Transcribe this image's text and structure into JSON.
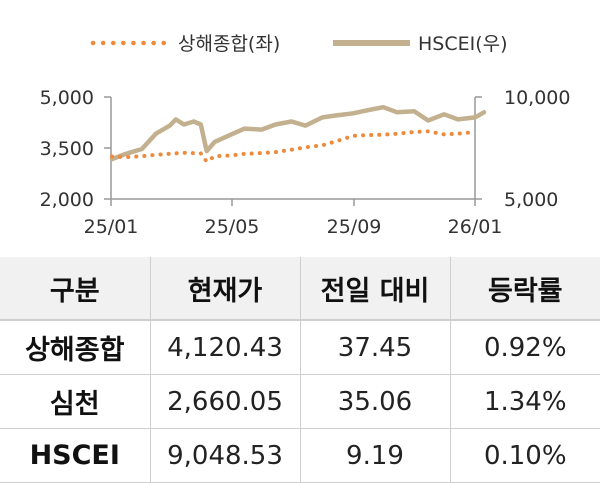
{
  "chart_data": {
    "type": "line",
    "legend": {
      "position": "top",
      "entries": [
        "상해종합(좌)",
        "HSCEI(우)"
      ]
    },
    "x_ticks": [
      "25/01",
      "25/05",
      "25/09",
      "26/01"
    ],
    "y_left": {
      "ticks": [
        "5,000",
        "3,500",
        "2,000"
      ],
      "range": [
        2000,
        5000
      ]
    },
    "y_right": {
      "ticks": [
        "10,000",
        "5,000"
      ],
      "range": [
        5000,
        10000
      ]
    },
    "grid": false,
    "series": [
      {
        "name": "상해종합(좌)",
        "axis": "left",
        "style": "dotted",
        "color": "#ee8a3c",
        "x": [
          "2025-01-02",
          "2025-01-15",
          "2025-02-01",
          "2025-02-15",
          "2025-03-01",
          "2025-03-15",
          "2025-04-01",
          "2025-04-07",
          "2025-04-15",
          "2025-05-01",
          "2025-05-15",
          "2025-06-01",
          "2025-06-15",
          "2025-07-01",
          "2025-07-15",
          "2025-08-01",
          "2025-08-15",
          "2025-09-01",
          "2025-09-15",
          "2025-10-01",
          "2025-10-15",
          "2025-11-01",
          "2025-11-15",
          "2025-12-01",
          "2025-12-15",
          "2026-01-01"
        ],
        "y": [
          3250,
          3230,
          3260,
          3300,
          3330,
          3360,
          3340,
          3100,
          3260,
          3280,
          3330,
          3350,
          3380,
          3450,
          3520,
          3580,
          3700,
          3860,
          3880,
          3890,
          3920,
          3970,
          3990,
          3900,
          3920,
          3970
        ]
      },
      {
        "name": "HSCEI(우)",
        "axis": "right",
        "style": "solid",
        "color": "#c3b08f",
        "x": [
          "2025-01-02",
          "2025-01-15",
          "2025-02-01",
          "2025-02-15",
          "2025-03-01",
          "2025-03-07",
          "2025-03-15",
          "2025-03-25",
          "2025-04-01",
          "2025-04-07",
          "2025-04-15",
          "2025-05-01",
          "2025-05-15",
          "2025-06-01",
          "2025-06-15",
          "2025-07-01",
          "2025-07-15",
          "2025-08-01",
          "2025-08-15",
          "2025-09-01",
          "2025-09-15",
          "2025-10-01",
          "2025-10-15",
          "2025-11-01",
          "2025-11-15",
          "2025-12-01",
          "2025-12-15",
          "2026-01-01",
          "2026-01-10"
        ],
        "y": [
          6950,
          7200,
          7450,
          8200,
          8600,
          8900,
          8650,
          8800,
          8650,
          7350,
          7800,
          8150,
          8450,
          8400,
          8650,
          8800,
          8600,
          9000,
          9100,
          9200,
          9350,
          9500,
          9250,
          9300,
          8850,
          9150,
          8900,
          9000,
          9250
        ]
      }
    ]
  },
  "table": {
    "headers": [
      "구분",
      "현재가",
      "전일 대비",
      "등락률"
    ],
    "rows": [
      [
        "상해종합",
        "4,120.43",
        "37.45",
        "0.92%"
      ],
      [
        "심천",
        "2,660.05",
        "35.06",
        "1.34%"
      ],
      [
        "HSCEI",
        "9,048.53",
        "9.19",
        "0.10%"
      ]
    ]
  },
  "colors": {
    "shanghai": "#ee8a3c",
    "hscei": "#c3b08f",
    "header_bg": "#f1f1f1",
    "rule": "#cfcfcf"
  }
}
